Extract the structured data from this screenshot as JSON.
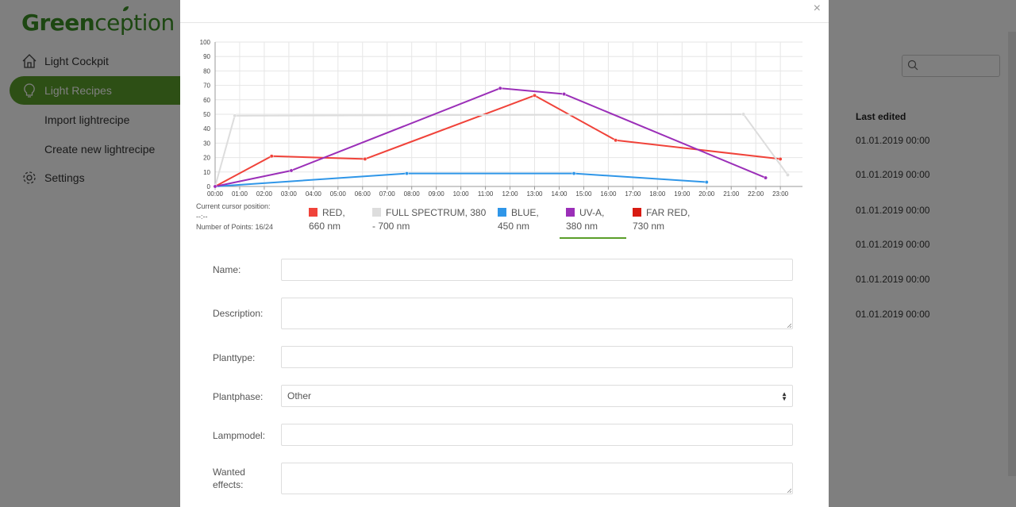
{
  "app": {
    "logo_part1": "Green",
    "logo_part2": "ception"
  },
  "sidebar": {
    "items": [
      {
        "label": "Light Cockpit",
        "icon": "home-icon"
      },
      {
        "label": "Light Recipes",
        "icon": "lightbulb-icon",
        "active": true
      },
      {
        "label": "Import lightrecipe"
      },
      {
        "label": "Create new lightrecipe"
      },
      {
        "label": "Settings",
        "icon": "gear-icon"
      }
    ]
  },
  "table": {
    "header_last_edited": "Last edited",
    "dates": [
      "01.01.2019 00:00",
      "01.01.2019 00:00",
      "01.01.2019 00:00",
      "01.01.2019 00:00",
      "01.01.2019 00:00",
      "01.01.2019 00:00"
    ]
  },
  "modal": {
    "close_label": "×",
    "cursor_info": {
      "line1": "Current cursor position:",
      "line2": "--:--",
      "line3": "Number of Points: 16/24"
    },
    "legend": [
      {
        "line1": "RED,",
        "line2": "660 nm",
        "color": "#f0433a"
      },
      {
        "line1": "FULL SPECTRUM, 380",
        "line2": "- 700 nm",
        "color": "#dddddd"
      },
      {
        "line1": "BLUE,",
        "line2": "450 nm",
        "color": "#2f96e8"
      },
      {
        "line1": "UV-A,",
        "line2": "380 nm",
        "color": "#9b2fb8",
        "selected": true
      },
      {
        "line1": "FAR RED,",
        "line2": "730 nm",
        "color": "#d81b12"
      }
    ],
    "form": {
      "name_label": "Name:",
      "name_value": "",
      "description_label": "Description:",
      "description_value": "",
      "planttype_label": "Planttype:",
      "planttype_value": "",
      "plantphase_label": "Plantphase:",
      "plantphase_value": "Other",
      "lampmodel_label": "Lampmodel:",
      "lampmodel_value": "",
      "wanted_effects_label1": "Wanted",
      "wanted_effects_label2": "effects:",
      "wanted_effects_value": ""
    }
  },
  "chart_data": {
    "type": "line",
    "x_categories": [
      "00:00",
      "01:00",
      "02:00",
      "03:00",
      "04:00",
      "05:00",
      "06:00",
      "07:00",
      "08:00",
      "09:00",
      "10:00",
      "11:00",
      "12:00",
      "13:00",
      "14:00",
      "15:00",
      "16:00",
      "17:00",
      "18:00",
      "19:00",
      "20:00",
      "21:00",
      "22:00",
      "23:00"
    ],
    "ylim": [
      0,
      100
    ],
    "yticks": [
      0,
      10,
      20,
      30,
      40,
      50,
      60,
      70,
      80,
      90,
      100
    ],
    "grid": true,
    "series": [
      {
        "key": "red",
        "color": "#f0433a",
        "points": [
          [
            0,
            0
          ],
          [
            2.3,
            21
          ],
          [
            6.1,
            19
          ],
          [
            13,
            63
          ],
          [
            16.3,
            32
          ],
          [
            23,
            19
          ]
        ]
      },
      {
        "key": "full",
        "color": "#dddddd",
        "points": [
          [
            0,
            0
          ],
          [
            0.8,
            49
          ],
          [
            21.5,
            50
          ],
          [
            23.3,
            8
          ]
        ]
      },
      {
        "key": "blue",
        "color": "#2f96e8",
        "points": [
          [
            0,
            0
          ],
          [
            7.8,
            9
          ],
          [
            14.6,
            9
          ],
          [
            20,
            3
          ]
        ]
      },
      {
        "key": "uva",
        "color": "#9b2fb8",
        "points": [
          [
            0,
            0
          ],
          [
            3.1,
            11
          ],
          [
            11.6,
            68
          ],
          [
            14.2,
            64
          ],
          [
            22.4,
            6
          ]
        ]
      }
    ]
  }
}
